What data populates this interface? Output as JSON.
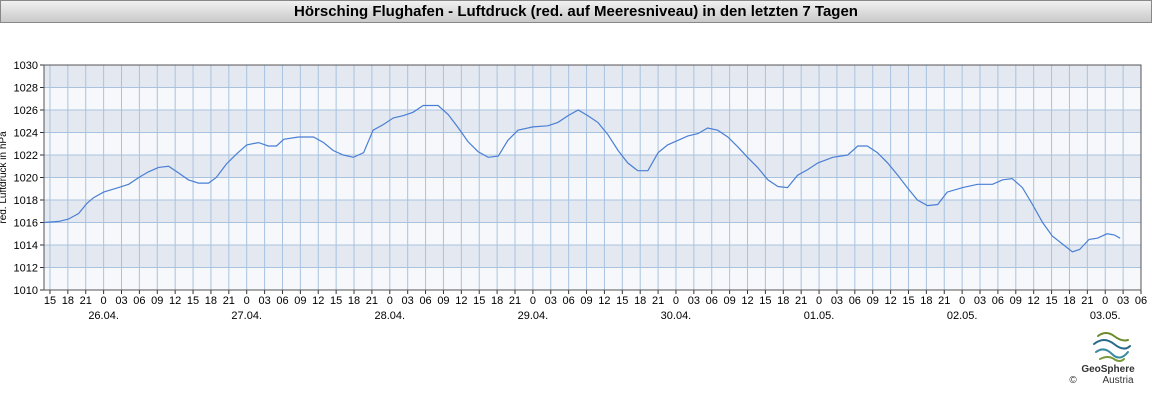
{
  "chart_data": {
    "type": "line",
    "title": "Hörsching Flughafen - Luftdruck (red. auf Meeresniveau) in den letzten 7 Tagen",
    "ylabel": "red. Luftdruck in hPa",
    "color": "#4a7fd4",
    "grid": true,
    "xlim": [
      14,
      198
    ],
    "ylim": [
      1010,
      1030
    ],
    "yticks": [
      1010,
      1012,
      1014,
      1016,
      1018,
      1020,
      1022,
      1024,
      1026,
      1028,
      1030
    ],
    "xticks": [
      {
        "value": 15,
        "label": "15"
      },
      {
        "value": 18,
        "label": "18"
      },
      {
        "value": 21,
        "label": "21"
      },
      {
        "value": 24,
        "label": "0"
      },
      {
        "value": 27,
        "label": "03"
      },
      {
        "value": 30,
        "label": "06"
      },
      {
        "value": 33,
        "label": "09"
      },
      {
        "value": 36,
        "label": "12"
      },
      {
        "value": 39,
        "label": "15"
      },
      {
        "value": 42,
        "label": "18"
      },
      {
        "value": 45,
        "label": "21"
      },
      {
        "value": 48,
        "label": "0"
      },
      {
        "value": 51,
        "label": "03"
      },
      {
        "value": 54,
        "label": "06"
      },
      {
        "value": 57,
        "label": "09"
      },
      {
        "value": 60,
        "label": "12"
      },
      {
        "value": 63,
        "label": "15"
      },
      {
        "value": 66,
        "label": "18"
      },
      {
        "value": 69,
        "label": "21"
      },
      {
        "value": 72,
        "label": "0"
      },
      {
        "value": 75,
        "label": "03"
      },
      {
        "value": 78,
        "label": "06"
      },
      {
        "value": 81,
        "label": "09"
      },
      {
        "value": 84,
        "label": "12"
      },
      {
        "value": 87,
        "label": "15"
      },
      {
        "value": 90,
        "label": "18"
      },
      {
        "value": 93,
        "label": "21"
      },
      {
        "value": 96,
        "label": "0"
      },
      {
        "value": 99,
        "label": "03"
      },
      {
        "value": 102,
        "label": "06"
      },
      {
        "value": 105,
        "label": "09"
      },
      {
        "value": 108,
        "label": "12"
      },
      {
        "value": 111,
        "label": "15"
      },
      {
        "value": 114,
        "label": "18"
      },
      {
        "value": 117,
        "label": "21"
      },
      {
        "value": 120,
        "label": "0"
      },
      {
        "value": 123,
        "label": "03"
      },
      {
        "value": 126,
        "label": "06"
      },
      {
        "value": 129,
        "label": "09"
      },
      {
        "value": 132,
        "label": "12"
      },
      {
        "value": 135,
        "label": "15"
      },
      {
        "value": 138,
        "label": "18"
      },
      {
        "value": 141,
        "label": "21"
      },
      {
        "value": 144,
        "label": "0"
      },
      {
        "value": 147,
        "label": "03"
      },
      {
        "value": 150,
        "label": "06"
      },
      {
        "value": 153,
        "label": "09"
      },
      {
        "value": 156,
        "label": "12"
      },
      {
        "value": 159,
        "label": "15"
      },
      {
        "value": 162,
        "label": "18"
      },
      {
        "value": 165,
        "label": "21"
      },
      {
        "value": 168,
        "label": "0"
      },
      {
        "value": 171,
        "label": "03"
      },
      {
        "value": 174,
        "label": "06"
      },
      {
        "value": 177,
        "label": "09"
      },
      {
        "value": 180,
        "label": "12"
      },
      {
        "value": 183,
        "label": "15"
      },
      {
        "value": 186,
        "label": "18"
      },
      {
        "value": 189,
        "label": "21"
      },
      {
        "value": 192,
        "label": "0"
      },
      {
        "value": 195,
        "label": "03"
      },
      {
        "value": 198,
        "label": "06"
      }
    ],
    "date_labels": [
      {
        "value": 24,
        "label": "26.04."
      },
      {
        "value": 48,
        "label": "27.04."
      },
      {
        "value": 72,
        "label": "28.04."
      },
      {
        "value": 96,
        "label": "29.04."
      },
      {
        "value": 120,
        "label": "30.04."
      },
      {
        "value": 144,
        "label": "01.05."
      },
      {
        "value": 168,
        "label": "02.05."
      },
      {
        "value": 192,
        "label": "03.05."
      }
    ],
    "x": [
      14,
      16.5,
      18.1,
      19.8,
      21.2,
      22.3,
      24,
      26.5,
      28.2,
      29.9,
      31.5,
      33.2,
      34.9,
      36.6,
      38.2,
      39.9,
      41.6,
      42.9,
      44.6,
      46.3,
      48,
      50,
      51.6,
      53,
      54.2,
      56.7,
      59.2,
      60.9,
      62.5,
      64.2,
      65.9,
      67.6,
      69.2,
      70.9,
      72.6,
      74.3,
      75.9,
      77.6,
      80.1,
      81.8,
      83.5,
      85.1,
      86.8,
      88.5,
      90.2,
      91.8,
      93.5,
      96,
      98.5,
      100.2,
      101.9,
      103.6,
      105.2,
      106.9,
      108.6,
      110.3,
      111.9,
      113.6,
      115.3,
      117,
      118.6,
      120.3,
      122,
      123.7,
      125.3,
      127,
      128.7,
      130.4,
      132,
      133.7,
      135.4,
      137.1,
      138.7,
      140.4,
      142.1,
      143.8,
      146.3,
      148.8,
      150.5,
      152.1,
      153.8,
      155.5,
      157.2,
      158.8,
      160.5,
      162.2,
      163.9,
      165.5,
      168.1,
      170.6,
      173.1,
      174.8,
      176.4,
      178.1,
      179.8,
      181.5,
      183.1,
      184.8,
      186.5,
      187.7,
      189.3,
      190.7,
      192.3,
      193.5,
      194.5
    ],
    "values": [
      1016.0,
      1016.1,
      1016.3,
      1016.8,
      1017.7,
      1018.2,
      1018.7,
      1019.1,
      1019.4,
      1020.0,
      1020.5,
      1020.9,
      1021.0,
      1020.4,
      1019.8,
      1019.5,
      1019.5,
      1020.0,
      1021.2,
      1022.1,
      1022.9,
      1023.1,
      1022.8,
      1022.8,
      1023.4,
      1023.6,
      1023.6,
      1023.1,
      1022.4,
      1022.0,
      1021.8,
      1022.2,
      1024.2,
      1024.7,
      1025.3,
      1025.5,
      1025.8,
      1026.4,
      1026.4,
      1025.6,
      1024.4,
      1023.2,
      1022.3,
      1021.8,
      1021.9,
      1023.3,
      1024.2,
      1024.5,
      1024.6,
      1024.9,
      1025.5,
      1026.0,
      1025.5,
      1024.9,
      1023.8,
      1022.4,
      1021.3,
      1020.6,
      1020.6,
      1022.2,
      1022.9,
      1023.3,
      1023.7,
      1023.9,
      1024.4,
      1024.2,
      1023.6,
      1022.7,
      1021.8,
      1020.9,
      1019.8,
      1019.2,
      1019.1,
      1020.2,
      1020.7,
      1021.3,
      1021.8,
      1022.0,
      1022.8,
      1022.8,
      1022.2,
      1021.3,
      1020.2,
      1019.1,
      1018.0,
      1017.5,
      1017.6,
      1018.7,
      1019.1,
      1019.4,
      1019.4,
      1019.8,
      1019.9,
      1019.1,
      1017.6,
      1016.0,
      1014.8,
      1014.1,
      1013.4,
      1013.6,
      1014.5,
      1014.6,
      1015.0,
      1014.9,
      1014.6
    ]
  },
  "logo": {
    "name": "GeoSphere",
    "sub": "Austria",
    "copyright": "©"
  }
}
